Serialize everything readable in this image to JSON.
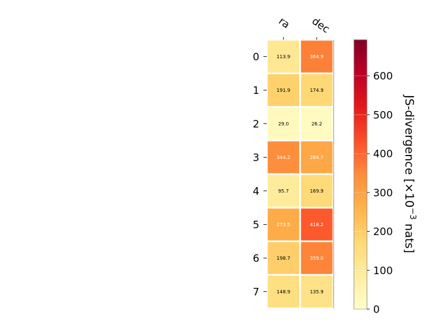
{
  "chart_data": {
    "type": "heatmap",
    "columns": [
      "ra",
      "dec"
    ],
    "rows": [
      "0",
      "1",
      "2",
      "3",
      "4",
      "5",
      "6",
      "7"
    ],
    "values": [
      [
        113.9,
        364.9
      ],
      [
        191.9,
        174.9
      ],
      [
        29.0,
        26.2
      ],
      [
        344.2,
        284.7
      ],
      [
        95.7,
        169.9
      ],
      [
        273.5,
        418.2
      ],
      [
        198.7,
        359.0
      ],
      [
        148.9,
        135.9
      ]
    ],
    "value_labels": [
      [
        "113.9",
        "364.9"
      ],
      [
        "191.9",
        "174.9"
      ],
      [
        "29.0",
        "26.2"
      ],
      [
        "344.2",
        "284.7"
      ],
      [
        "95.7",
        "169.9"
      ],
      [
        "273.5",
        "418.2"
      ],
      [
        "198.7",
        "359.0"
      ],
      [
        "148.9",
        "135.9"
      ]
    ],
    "colorbar": {
      "label_main": "JS-divergence [×10",
      "label_sup": "−3",
      "label_end": " nats]",
      "range": [
        0,
        693
      ],
      "ticks": [
        "0",
        "100",
        "200",
        "300",
        "400",
        "500",
        "600"
      ],
      "colormap": "YlOrRd"
    }
  }
}
